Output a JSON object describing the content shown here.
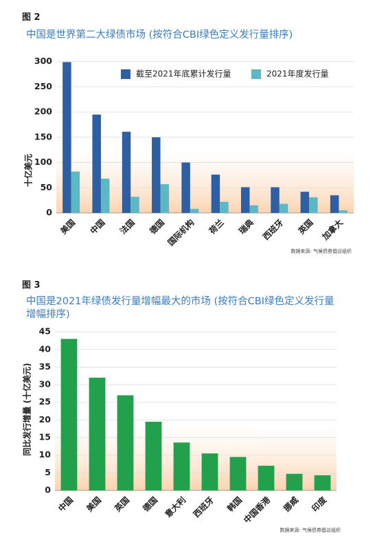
{
  "chart_data": [
    {
      "type": "bar",
      "figure_label": "图 2",
      "title": "中国是世界第二大绿债市场 (按符合CBI绿色定义发行量排序)",
      "y_label": "十亿美元",
      "categories": [
        "美国",
        "中国",
        "法国",
        "德国",
        "国际机构",
        "荷兰",
        "瑞典",
        "西班牙",
        "英国",
        "加拿大"
      ],
      "series": [
        {
          "name": "截至2021年底累计发行量",
          "color": "#2e5fa3",
          "values": [
            299,
            195,
            161,
            150,
            100,
            76,
            51,
            51,
            42,
            35
          ]
        },
        {
          "name": "2021年度发行量",
          "color": "#5bb8c4",
          "values": [
            82,
            68,
            32,
            57,
            8,
            22,
            15,
            18,
            31,
            5
          ]
        }
      ],
      "ylim": [
        0,
        305
      ],
      "yticks": [
        0,
        50,
        100,
        150,
        200,
        250,
        300
      ],
      "grid": true,
      "source": "数据来源: 气候债券倡议组织"
    },
    {
      "type": "bar",
      "figure_label": "图 3",
      "title": "中国是2021年绿债发行量增幅最大的市场 (按符合CBI绿色定义发行量增幅排序)",
      "y_label": "同比发行增量 (十亿美元)",
      "categories": [
        "中国",
        "美国",
        "英国",
        "德国",
        "意大利",
        "西班牙",
        "韩国",
        "中国香港",
        "挪威",
        "印度"
      ],
      "values": [
        43,
        32,
        27,
        19.5,
        13.6,
        10.5,
        9.5,
        7,
        4.7,
        4.3
      ],
      "color": "#22a04b",
      "ylim": [
        0,
        46
      ],
      "yticks": [
        0,
        5,
        10,
        15,
        20,
        25,
        30,
        35,
        40,
        45
      ],
      "grid": true,
      "source": "数据来源: 气候债券倡议组织"
    }
  ]
}
